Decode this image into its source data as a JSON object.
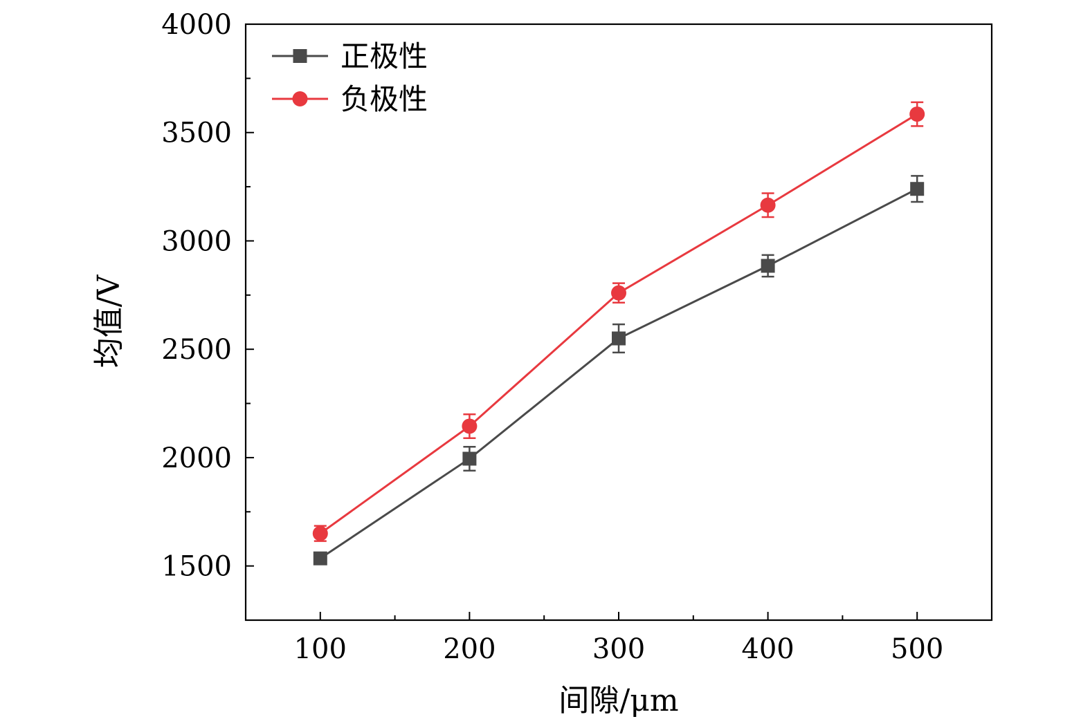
{
  "chart_data": {
    "type": "line",
    "x": [
      100,
      200,
      300,
      400,
      500
    ],
    "xlabel": "间隙/μm",
    "ylabel": "均值/V",
    "xlim": [
      50,
      550
    ],
    "ylim": [
      1250,
      4000
    ],
    "xticks": [
      100,
      200,
      300,
      400,
      500
    ],
    "xtick_labels": [
      "100",
      "200",
      "300",
      "400",
      "500"
    ],
    "yticks": [
      1500,
      2000,
      2500,
      3000,
      3500,
      4000
    ],
    "ytick_labels": [
      "1500",
      "2000",
      "2500",
      "3000",
      "3500",
      "4000"
    ],
    "grid": false,
    "legend_position": "top-left",
    "series": [
      {
        "name": "正极性",
        "marker": "square",
        "color": "#4a4a4a",
        "values": [
          1535,
          1995,
          2550,
          2885,
          3240
        ],
        "error": [
          25,
          55,
          65,
          50,
          60
        ]
      },
      {
        "name": "负极性",
        "marker": "circle",
        "color": "#e8393f",
        "values": [
          1650,
          2145,
          2760,
          3165,
          3585
        ],
        "error": [
          35,
          55,
          45,
          55,
          55
        ]
      }
    ]
  }
}
